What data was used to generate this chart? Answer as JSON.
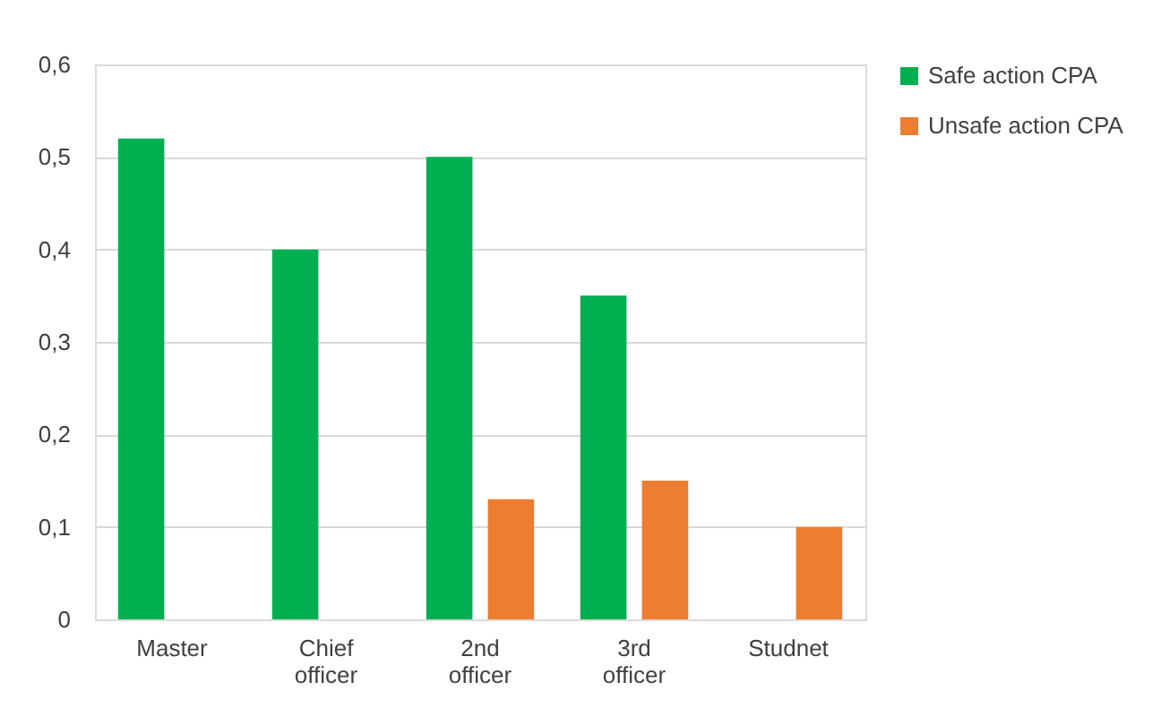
{
  "chart_data": {
    "type": "bar",
    "categories": [
      "Master",
      "Chief officer",
      "2nd officer",
      "3rd officer",
      "Studnet"
    ],
    "series": [
      {
        "name": "Safe action CPA",
        "color": "#00b050",
        "values": [
          0.52,
          0.4,
          0.5,
          0.35,
          null
        ]
      },
      {
        "name": "Unsafe action CPA",
        "color": "#ed7d31",
        "values": [
          null,
          null,
          0.13,
          0.15,
          0.1
        ]
      }
    ],
    "ylim": [
      0,
      0.6
    ],
    "yticks": [
      0,
      {
        "value": 0.1,
        "label": "0,1"
      },
      {
        "value": 0.2,
        "label": "0,2"
      },
      {
        "value": 0.3,
        "label": "0,3"
      },
      {
        "value": 0.4,
        "label": "0,4"
      },
      {
        "value": 0.5,
        "label": "0,5"
      },
      {
        "value": 0.6,
        "label": "0,6"
      }
    ],
    "grid": "y",
    "legend": "right"
  }
}
